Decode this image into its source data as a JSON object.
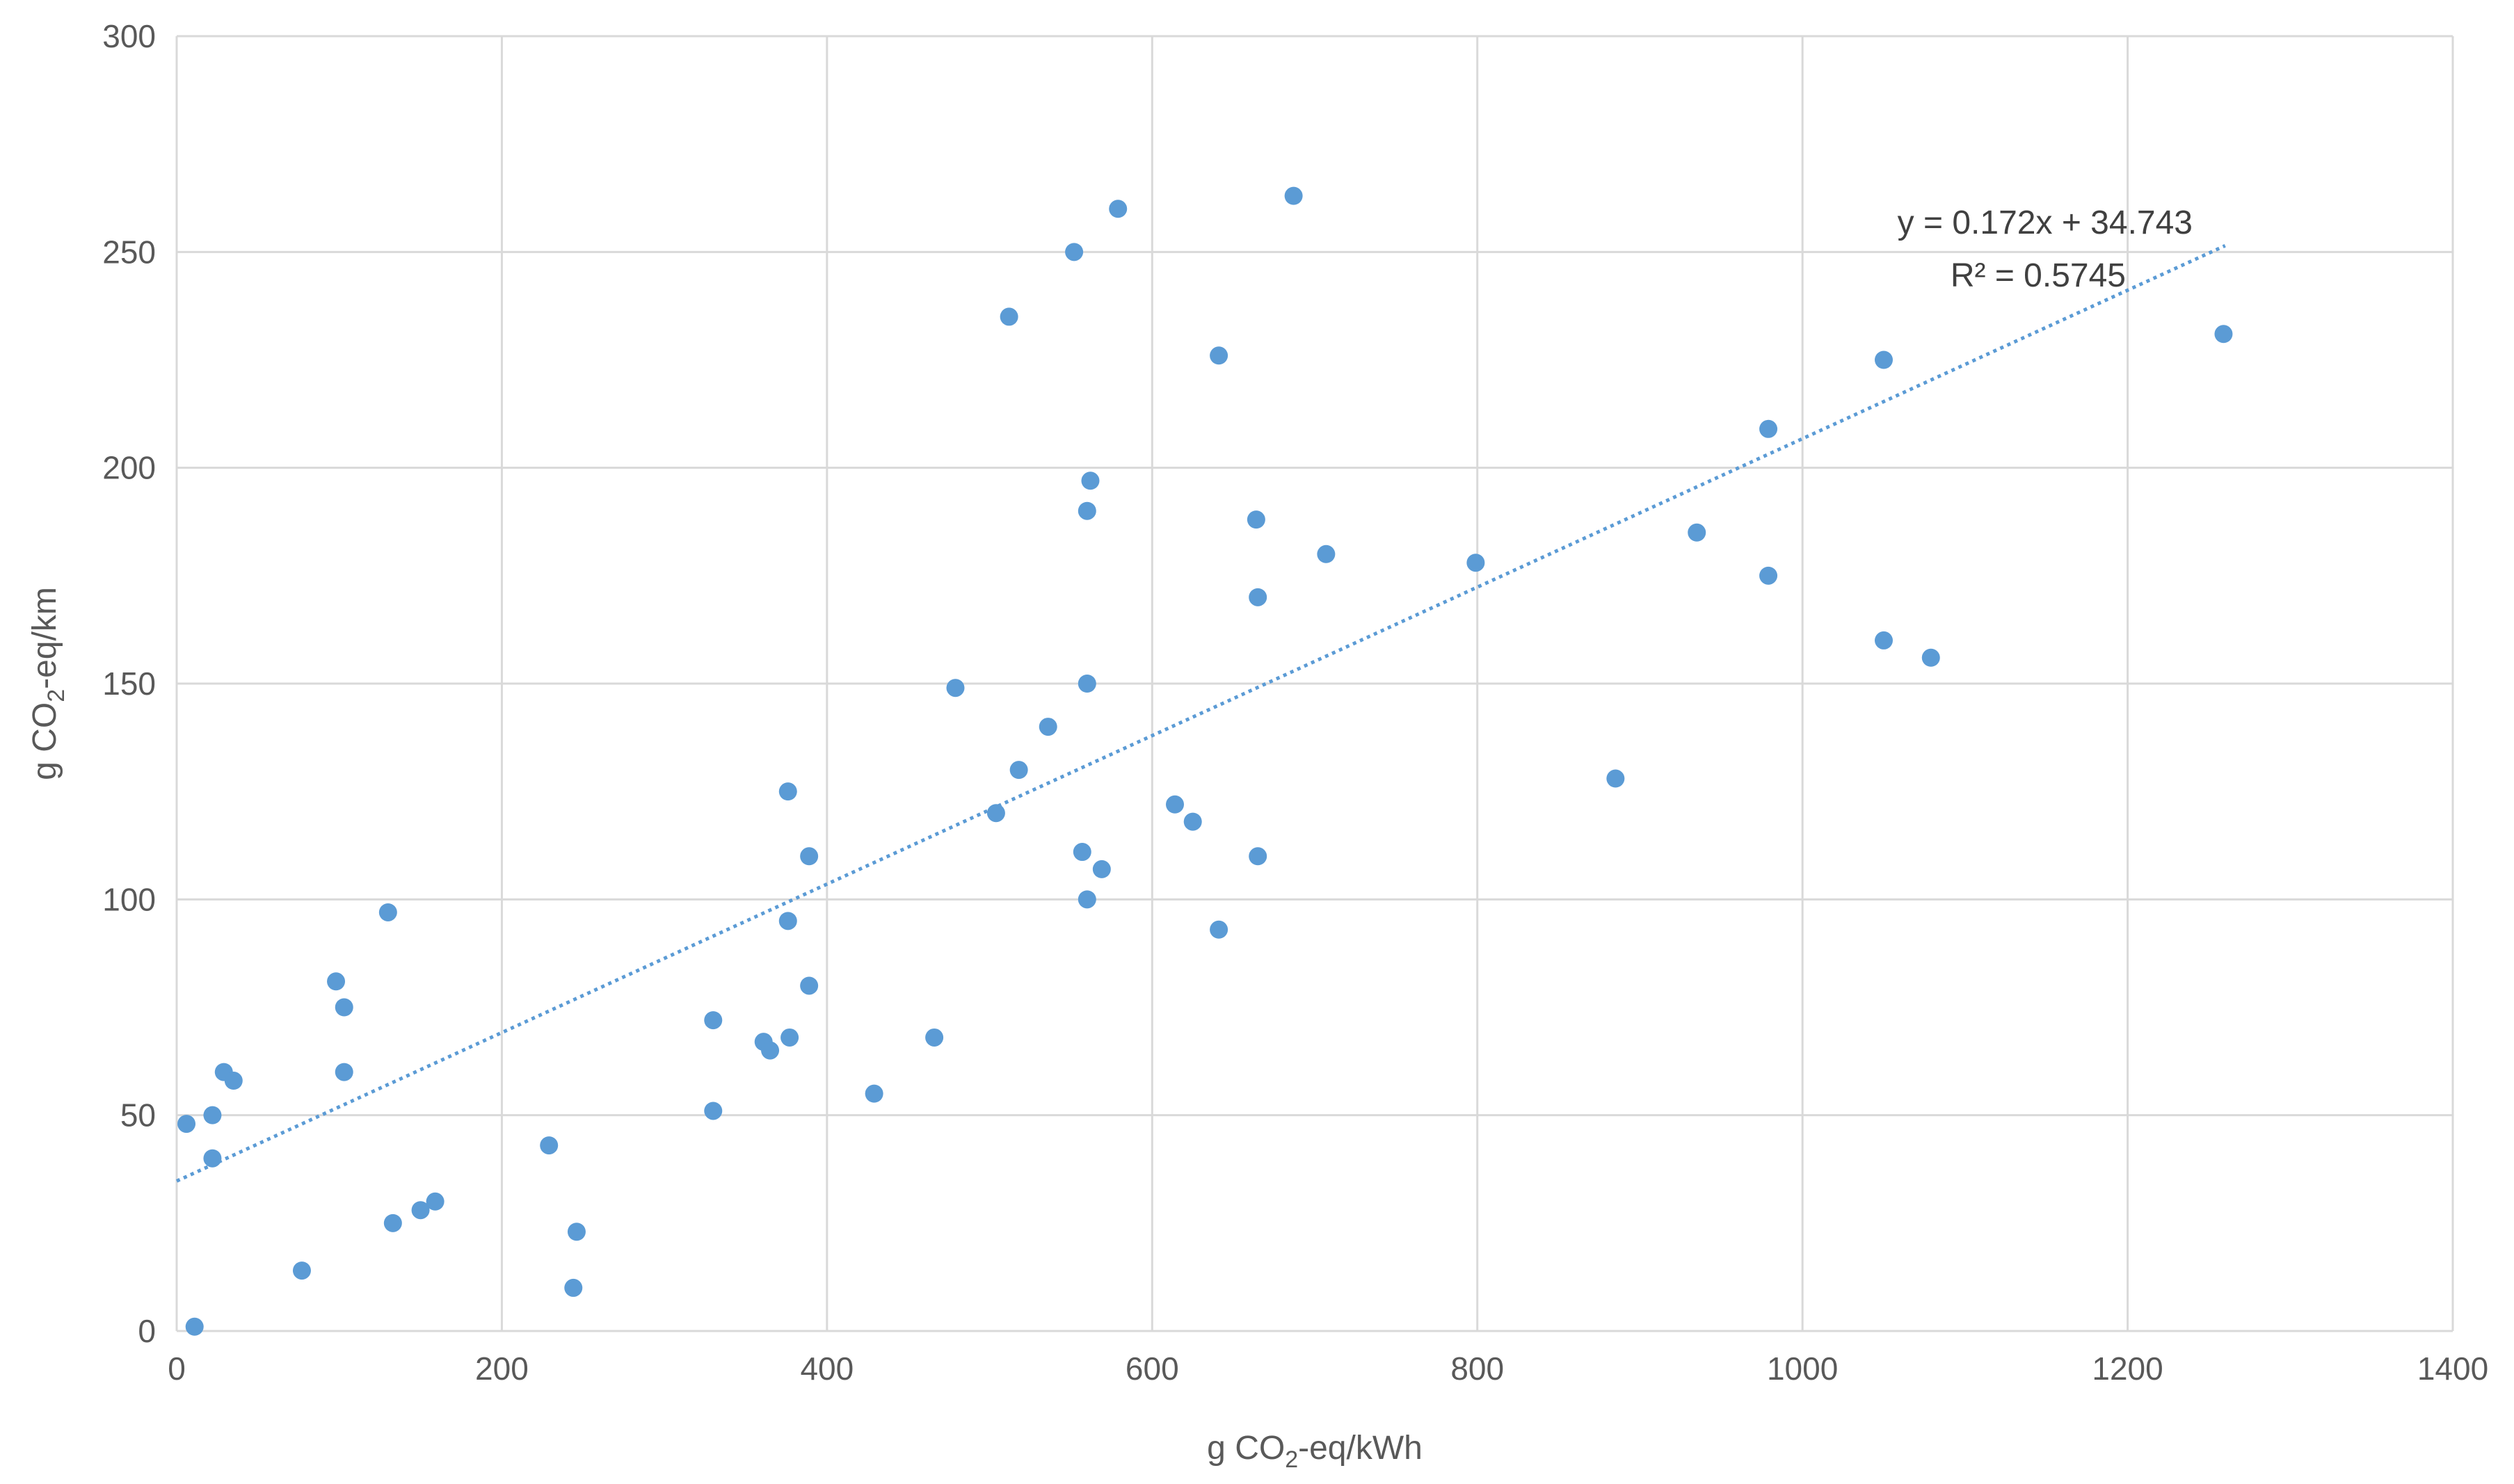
{
  "chart_data": {
    "type": "scatter",
    "title": "",
    "xlabel": {
      "prefix": "g CO",
      "sub": "2",
      "suffix": "-eq/kWh"
    },
    "ylabel": {
      "prefix": "g CO",
      "sub": "2",
      "suffix": "-eq/km"
    },
    "xlim": [
      0,
      1400
    ],
    "ylim": [
      0,
      300
    ],
    "xticks": [
      "0",
      "200",
      "400",
      "600",
      "800",
      "1000",
      "1200",
      "1400"
    ],
    "yticks": [
      "0",
      "50",
      "100",
      "150",
      "200",
      "250",
      "300"
    ],
    "grid": true,
    "marker_color": "#5B9BD5",
    "trendline": {
      "slope": 0.172,
      "intercept": 34.743,
      "x_range": [
        0,
        1260
      ],
      "equation": "y = 0.172x + 34.743",
      "r2_label": "R² = 0.5745",
      "style": "dotted",
      "color": "#5B9BD5"
    },
    "points": [
      {
        "x": 6,
        "y": 48
      },
      {
        "x": 11,
        "y": 1
      },
      {
        "x": 22,
        "y": 50
      },
      {
        "x": 22,
        "y": 40
      },
      {
        "x": 29,
        "y": 60
      },
      {
        "x": 35,
        "y": 58
      },
      {
        "x": 77,
        "y": 14
      },
      {
        "x": 98,
        "y": 81
      },
      {
        "x": 103,
        "y": 75
      },
      {
        "x": 103,
        "y": 60
      },
      {
        "x": 130,
        "y": 97
      },
      {
        "x": 133,
        "y": 25
      },
      {
        "x": 150,
        "y": 28
      },
      {
        "x": 159,
        "y": 30
      },
      {
        "x": 229,
        "y": 43
      },
      {
        "x": 244,
        "y": 10
      },
      {
        "x": 246,
        "y": 23
      },
      {
        "x": 330,
        "y": 72
      },
      {
        "x": 330,
        "y": 51
      },
      {
        "x": 361,
        "y": 67
      },
      {
        "x": 365,
        "y": 65
      },
      {
        "x": 376,
        "y": 125
      },
      {
        "x": 376,
        "y": 95
      },
      {
        "x": 377,
        "y": 68
      },
      {
        "x": 389,
        "y": 110
      },
      {
        "x": 389,
        "y": 80
      },
      {
        "x": 429,
        "y": 55
      },
      {
        "x": 466,
        "y": 68
      },
      {
        "x": 479,
        "y": 149
      },
      {
        "x": 504,
        "y": 120
      },
      {
        "x": 512,
        "y": 235
      },
      {
        "x": 518,
        "y": 130
      },
      {
        "x": 536,
        "y": 140
      },
      {
        "x": 552,
        "y": 250
      },
      {
        "x": 557,
        "y": 111
      },
      {
        "x": 560,
        "y": 190
      },
      {
        "x": 560,
        "y": 150
      },
      {
        "x": 560,
        "y": 100
      },
      {
        "x": 562,
        "y": 197
      },
      {
        "x": 569,
        "y": 107
      },
      {
        "x": 579,
        "y": 260
      },
      {
        "x": 614,
        "y": 122
      },
      {
        "x": 625,
        "y": 118
      },
      {
        "x": 641,
        "y": 226
      },
      {
        "x": 641,
        "y": 93
      },
      {
        "x": 664,
        "y": 188
      },
      {
        "x": 665,
        "y": 170
      },
      {
        "x": 665,
        "y": 110
      },
      {
        "x": 687,
        "y": 263
      },
      {
        "x": 707,
        "y": 180
      },
      {
        "x": 799,
        "y": 178
      },
      {
        "x": 885,
        "y": 128
      },
      {
        "x": 935,
        "y": 185
      },
      {
        "x": 979,
        "y": 209
      },
      {
        "x": 979,
        "y": 175
      },
      {
        "x": 1050,
        "y": 225
      },
      {
        "x": 1050,
        "y": 160
      },
      {
        "x": 1079,
        "y": 156
      },
      {
        "x": 1259,
        "y": 231
      }
    ]
  }
}
